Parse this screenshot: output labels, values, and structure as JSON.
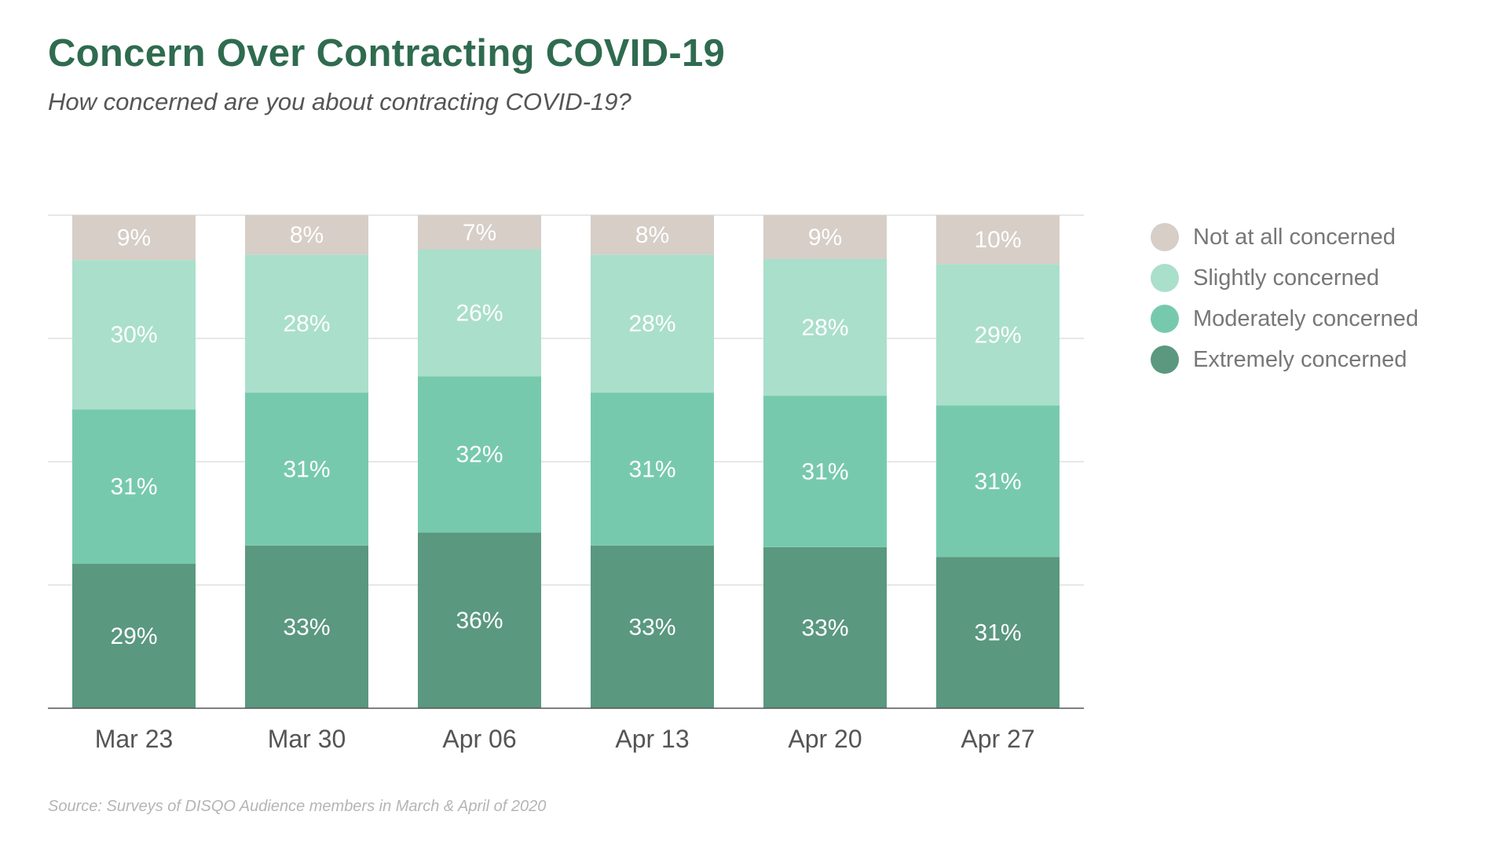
{
  "chart_data": {
    "type": "bar",
    "stacked": true,
    "title": "Concern Over Contracting COVID-19",
    "subtitle": "How concerned are you about contracting COVID-19?",
    "source": "Source: Surveys of DISQO Audience members in March & April of 2020",
    "categories": [
      "Mar 23",
      "Mar 30",
      "Apr 06",
      "Apr 13",
      "Apr 20",
      "Apr 27"
    ],
    "series": [
      {
        "name": "Extremely concerned",
        "color": "#5a9880",
        "values": [
          29,
          33,
          36,
          33,
          33,
          31
        ],
        "labels": [
          "29%",
          "33%",
          "36%",
          "33%",
          "33%",
          "31%"
        ]
      },
      {
        "name": "Moderately concerned",
        "color": "#77c9ad",
        "values": [
          31,
          31,
          32,
          31,
          31,
          31
        ],
        "labels": [
          "31%",
          "31%",
          "32%",
          "31%",
          "31%",
          "31%"
        ]
      },
      {
        "name": "Slightly concerned",
        "color": "#aadfcc",
        "values": [
          30,
          28,
          26,
          28,
          28,
          29
        ],
        "labels": [
          "30%",
          "28%",
          "26%",
          "28%",
          "28%",
          "29%"
        ]
      },
      {
        "name": "Not at all concerned",
        "color": "#d6cec7",
        "values": [
          9,
          8,
          7,
          8,
          9,
          10
        ],
        "labels": [
          "9%",
          "8%",
          "7%",
          "8%",
          "9%",
          "10%"
        ]
      }
    ],
    "legend_order": [
      "Not at all concerned",
      "Slightly concerned",
      "Moderately concerned",
      "Extremely concerned"
    ],
    "legend_position": "right",
    "ylim": [
      0,
      100
    ],
    "grid": true,
    "xlabel": "",
    "ylabel": ""
  },
  "colors": {
    "title": "#2f6b4f",
    "grid": "#cfcfcf",
    "axis": "#555555"
  }
}
